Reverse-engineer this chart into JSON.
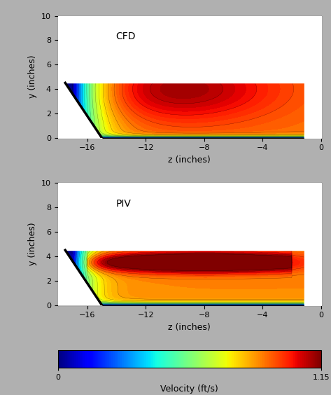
{
  "title_cfd": "CFD",
  "title_piv": "PIV",
  "xlabel": "z (inches)",
  "ylabel": "y (inches)",
  "colorbar_label": "Velocity (ft/s)",
  "vmin": 0,
  "vmax": 1.15,
  "xlim": [
    -18,
    0
  ],
  "ylim": [
    0,
    10
  ],
  "xticks": [
    -16,
    -12,
    -8,
    -4,
    0
  ],
  "yticks": [
    0,
    2,
    4,
    6,
    8,
    10
  ],
  "data_xmin": -17.0,
  "data_xmax": -1.2,
  "data_ymin": 0.0,
  "data_ymax": 4.5,
  "wall_top_x": -17.5,
  "wall_top_y": 4.5,
  "wall_bot_x": -15.0,
  "wall_bot_y": 0.0,
  "figsize": [
    4.73,
    5.64
  ],
  "dpi": 100,
  "fig_bg": "#b0b0b0"
}
